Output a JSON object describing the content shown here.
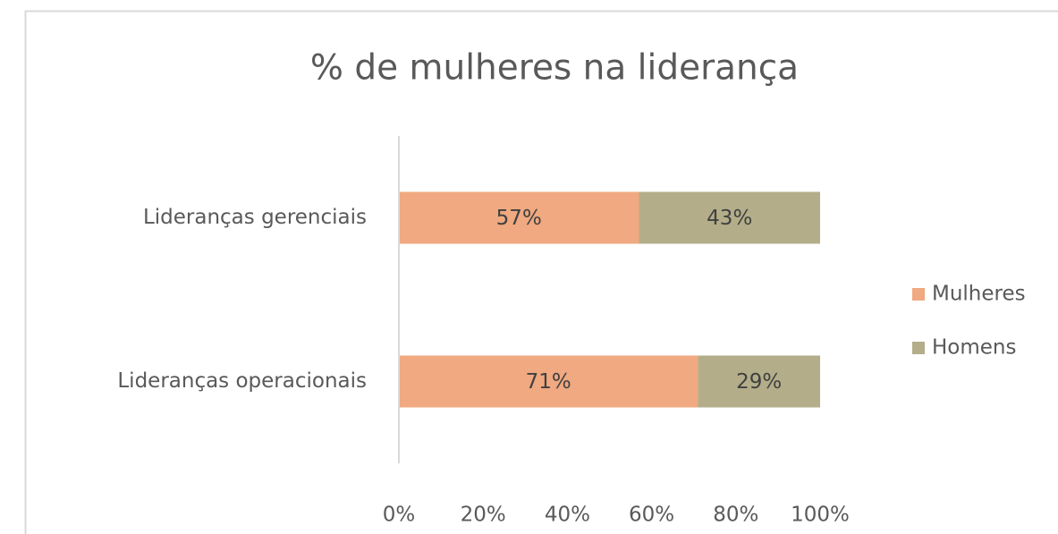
{
  "chart_data": {
    "type": "stacked_bar_horizontal",
    "title": "% de mulheres na liderança",
    "categories": [
      "Lideranças gerenciais",
      "Lideranças operacionais"
    ],
    "series": [
      {
        "name": "Mulheres",
        "color": "#f0a980",
        "values": [
          57,
          71
        ],
        "value_labels": [
          "57%",
          "71%"
        ]
      },
      {
        "name": "Homens",
        "color": "#b3ae89",
        "values": [
          43,
          29
        ],
        "value_labels": [
          "43%",
          "29%"
        ]
      }
    ],
    "xlim": [
      0,
      100
    ],
    "xticks": [
      {
        "value": 0,
        "label": "0%"
      },
      {
        "value": 20,
        "label": "20%"
      },
      {
        "value": 40,
        "label": "40%"
      },
      {
        "value": 60,
        "label": "60%"
      },
      {
        "value": 80,
        "label": "80%"
      },
      {
        "value": 100,
        "label": "100%"
      }
    ],
    "grid": false,
    "legend": "right"
  }
}
